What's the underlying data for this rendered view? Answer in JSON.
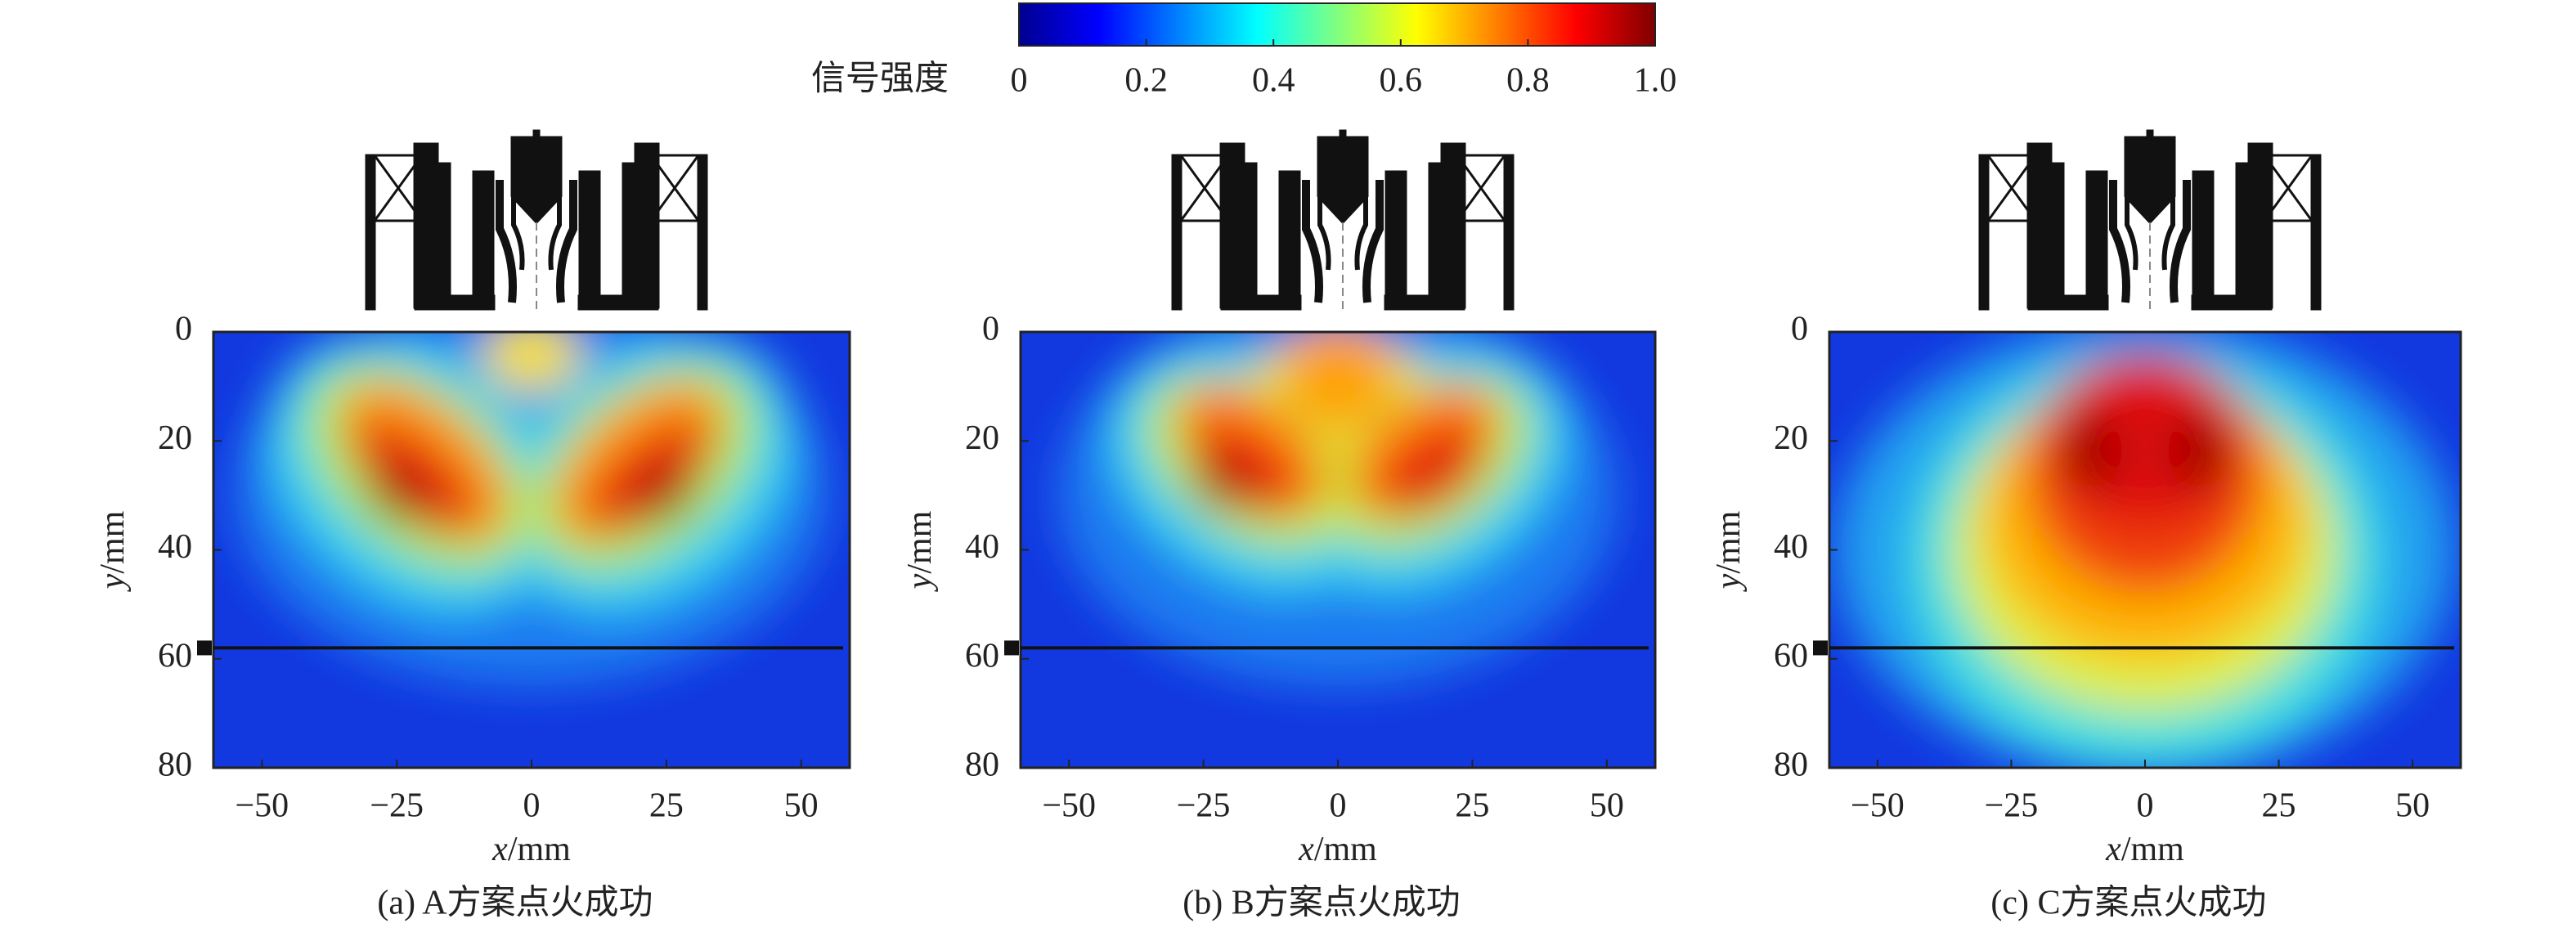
{
  "colorbar": {
    "label": "信号强度",
    "ticks": [
      0,
      0.2,
      0.4,
      0.6,
      0.8,
      {
        "value": 1,
        "label": "1.0"
      }
    ],
    "lim": [
      0,
      1
    ],
    "colors": [
      "#00008f",
      "#0000ff",
      "#0080ff",
      "#00ffff",
      "#80ff80",
      "#ffff00",
      "#ff8000",
      "#ff0000",
      "#800000"
    ]
  },
  "chart_data": [
    {
      "type": "heatmap",
      "caption": "(a) A方案点火成功",
      "xlabel": {
        "var": "x",
        "unit": "/mm"
      },
      "ylabel": {
        "var": "y",
        "unit": "/mm"
      },
      "xlim": [
        -59,
        59
      ],
      "ylim": [
        0,
        80
      ],
      "y_inverted": true,
      "xticks": [
        {
          "value": -50,
          "label": "−50"
        },
        {
          "value": -25,
          "label": "−25"
        },
        0,
        25,
        50
      ],
      "yticks": [
        0,
        20,
        40,
        60,
        80
      ],
      "reference_line": 58
    },
    {
      "type": "heatmap",
      "caption": "(b) B方案点火成功",
      "xlabel": {
        "var": "x",
        "unit": "/mm"
      },
      "ylabel": {
        "var": "y",
        "unit": "/mm"
      },
      "xlim": [
        -59,
        59
      ],
      "ylim": [
        0,
        80
      ],
      "y_inverted": true,
      "xticks": [
        {
          "value": -50,
          "label": "−50"
        },
        {
          "value": -25,
          "label": "−25"
        },
        0,
        25,
        50
      ],
      "yticks": [
        0,
        20,
        40,
        60,
        80
      ],
      "reference_line": 58
    },
    {
      "type": "heatmap",
      "caption": "(c) C方案点火成功",
      "xlabel": {
        "var": "x",
        "unit": "/mm"
      },
      "ylabel": {
        "var": "y",
        "unit": "/mm"
      },
      "xlim": [
        -59,
        59
      ],
      "ylim": [
        0,
        80
      ],
      "y_inverted": true,
      "xticks": [
        {
          "value": -50,
          "label": "−50"
        },
        {
          "value": -25,
          "label": "−25"
        },
        0,
        25,
        50
      ],
      "yticks": [
        0,
        20,
        40,
        60,
        80
      ],
      "reference_line": 58
    }
  ]
}
